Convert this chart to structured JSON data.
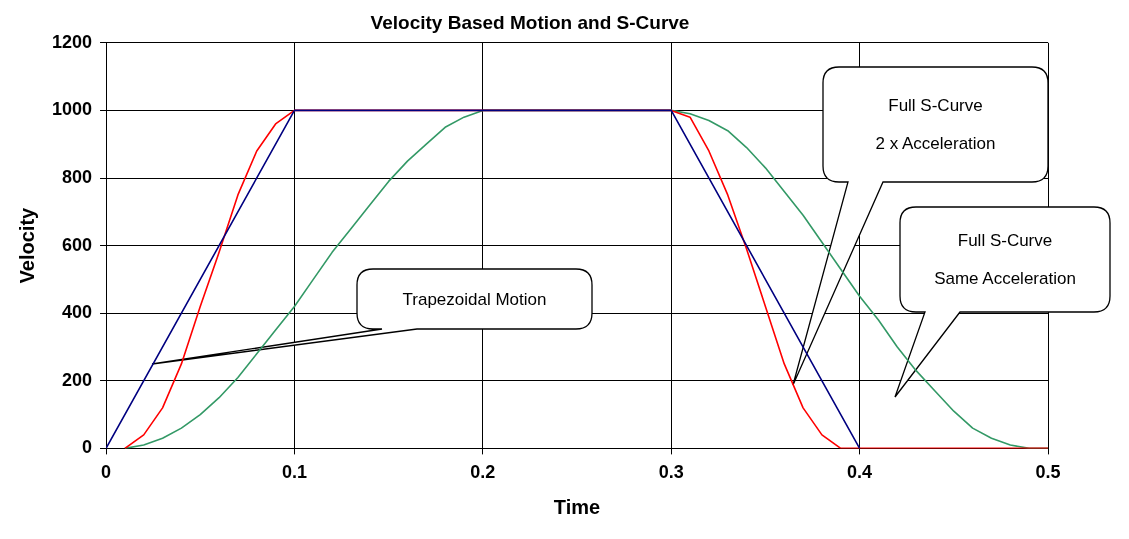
{
  "chart_data": {
    "type": "line",
    "title": "Velocity Based Motion and S-Curve",
    "xlabel": "Time",
    "ylabel": "Velocity",
    "xlim": [
      0,
      0.5
    ],
    "xticks": [
      0,
      0.1,
      0.2,
      0.3,
      0.4,
      0.5
    ],
    "ylim": [
      0,
      1200
    ],
    "yticks": [
      0,
      200,
      400,
      600,
      800,
      1000,
      1200
    ],
    "grid": true,
    "legend": false,
    "marker": "none",
    "line_style": "solid",
    "series": [
      {
        "color": "#000080",
        "x": [
          0,
          0.1,
          0.3,
          0.4
        ],
        "values": [
          0,
          1000,
          1000,
          0
        ]
      },
      {
        "color": "#ff0000",
        "x": [
          0.01,
          0.02,
          0.03,
          0.04,
          0.05,
          0.06,
          0.07,
          0.08,
          0.09,
          0.1,
          0.3,
          0.31,
          0.32,
          0.33,
          0.34,
          0.35,
          0.36,
          0.37,
          0.38,
          0.39,
          0.5
        ],
        "values": [
          0,
          40,
          120,
          250,
          420,
          580,
          750,
          880,
          960,
          1000,
          1000,
          980,
          880,
          750,
          590,
          420,
          250,
          120,
          40,
          0,
          0
        ]
      },
      {
        "color": "#339966",
        "x": [
          0.01,
          0.02,
          0.03,
          0.04,
          0.05,
          0.06,
          0.07,
          0.08,
          0.09,
          0.1,
          0.11,
          0.12,
          0.13,
          0.14,
          0.15,
          0.16,
          0.17,
          0.18,
          0.19,
          0.2,
          0.3,
          0.31,
          0.32,
          0.33,
          0.34,
          0.35,
          0.36,
          0.37,
          0.38,
          0.39,
          0.4,
          0.41,
          0.42,
          0.43,
          0.44,
          0.45,
          0.46,
          0.47,
          0.48,
          0.49,
          0.5
        ],
        "values": [
          0,
          10,
          30,
          60,
          100,
          150,
          210,
          280,
          350,
          420,
          500,
          580,
          650,
          720,
          790,
          850,
          900,
          950,
          980,
          1000,
          1000,
          990,
          970,
          940,
          890,
          830,
          760,
          690,
          610,
          530,
          450,
          380,
          300,
          230,
          170,
          110,
          60,
          30,
          10,
          0,
          0
        ]
      }
    ],
    "annotations": [
      "Trapezoidal Motion",
      "Full S-Curve\n\n2 x Acceleration",
      "Full S-Curve\n\nSame Acceleration"
    ]
  }
}
